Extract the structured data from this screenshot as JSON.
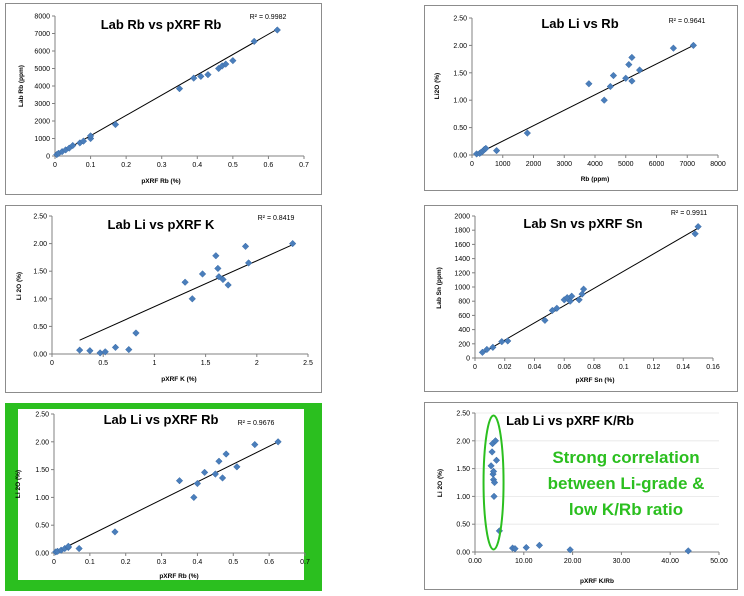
{
  "chart_data": [
    {
      "type": "scatter",
      "title": "Lab Rb vs pXRF Rb",
      "xlabel": "pXRF Rb (%)",
      "ylabel": "Lab Rb (ppm)",
      "r2": "R² = 0.9982",
      "xlim": [
        0,
        0.7
      ],
      "ylim": [
        0,
        8000
      ],
      "xticks": [
        0,
        0.1,
        0.2,
        0.3,
        0.4,
        0.5,
        0.6,
        0.7
      ],
      "xtick_labels": [
        "0",
        "0.1",
        "0.2",
        "0.3",
        "0.4",
        "0.5",
        "0.6",
        "0.7"
      ],
      "yticks": [
        0,
        1000,
        2000,
        3000,
        4000,
        5000,
        6000,
        7000,
        8000
      ],
      "ytick_labels": [
        "0",
        "1000",
        "2000",
        "3000",
        "4000",
        "5000",
        "6000",
        "7000",
        "8000"
      ],
      "trendline": [
        [
          0,
          0
        ],
        [
          0.625,
          7250
        ]
      ],
      "points": [
        [
          0.005,
          80
        ],
        [
          0.01,
          150
        ],
        [
          0.02,
          250
        ],
        [
          0.03,
          350
        ],
        [
          0.04,
          450
        ],
        [
          0.05,
          600
        ],
        [
          0.07,
          750
        ],
        [
          0.08,
          850
        ],
        [
          0.1,
          1000
        ],
        [
          0.1,
          1150
        ],
        [
          0.17,
          1800
        ],
        [
          0.35,
          3850
        ],
        [
          0.39,
          4450
        ],
        [
          0.41,
          4550
        ],
        [
          0.43,
          4650
        ],
        [
          0.46,
          5000
        ],
        [
          0.47,
          5150
        ],
        [
          0.48,
          5250
        ],
        [
          0.5,
          5450
        ],
        [
          0.56,
          6550
        ],
        [
          0.625,
          7200
        ]
      ]
    },
    {
      "type": "scatter",
      "title": "Lab Li vs Rb",
      "xlabel": "Rb (ppm)",
      "ylabel": "Li2O (%)",
      "r2": "R² = 0.9641",
      "xlim": [
        0,
        8000
      ],
      "ylim": [
        0,
        2.5
      ],
      "xticks": [
        0,
        1000,
        2000,
        3000,
        4000,
        5000,
        6000,
        7000,
        8000
      ],
      "xtick_labels": [
        "0",
        "1000",
        "2000",
        "3000",
        "4000",
        "5000",
        "6000",
        "7000",
        "8000"
      ],
      "yticks": [
        0,
        0.5,
        1,
        1.5,
        2,
        2.5
      ],
      "ytick_labels": [
        "0.00",
        "0.50",
        "1.00",
        "1.50",
        "2.00",
        "2.50"
      ],
      "trendline": [
        [
          100,
          0
        ],
        [
          7200,
          2.0
        ]
      ],
      "points": [
        [
          150,
          0.02
        ],
        [
          250,
          0.03
        ],
        [
          300,
          0.05
        ],
        [
          350,
          0.07
        ],
        [
          400,
          0.1
        ],
        [
          450,
          0.12
        ],
        [
          800,
          0.08
        ],
        [
          1800,
          0.4
        ],
        [
          3800,
          1.3
        ],
        [
          4300,
          1.0
        ],
        [
          4500,
          1.25
        ],
        [
          4600,
          1.45
        ],
        [
          5000,
          1.4
        ],
        [
          5100,
          1.65
        ],
        [
          5200,
          1.78
        ],
        [
          5200,
          1.35
        ],
        [
          5450,
          1.55
        ],
        [
          6550,
          1.95
        ],
        [
          7200,
          2.0
        ]
      ]
    },
    {
      "type": "scatter",
      "title": "Lab Li vs pXRF K",
      "xlabel": "pXRF K (%)",
      "ylabel": "Li 2O (%)",
      "r2": "R² = 0.8419",
      "xlim": [
        0,
        2.5
      ],
      "ylim": [
        0,
        2.5
      ],
      "xticks": [
        0,
        0.5,
        1,
        1.5,
        2,
        2.5
      ],
      "xtick_labels": [
        "0",
        "0.5",
        "1",
        "1.5",
        "2",
        "2.5"
      ],
      "yticks": [
        0,
        0.5,
        1,
        1.5,
        2,
        2.5
      ],
      "ytick_labels": [
        "0.00",
        "0.50",
        "1.00",
        "1.50",
        "2.00",
        "2.50"
      ],
      "trendline": [
        [
          0.27,
          0.25
        ],
        [
          2.35,
          1.98
        ]
      ],
      "points": [
        [
          0.27,
          0.07
        ],
        [
          0.37,
          0.06
        ],
        [
          0.47,
          0.02
        ],
        [
          0.52,
          0.04
        ],
        [
          0.62,
          0.12
        ],
        [
          0.75,
          0.08
        ],
        [
          0.82,
          0.38
        ],
        [
          1.3,
          1.3
        ],
        [
          1.37,
          1.0
        ],
        [
          1.47,
          1.45
        ],
        [
          1.6,
          1.78
        ],
        [
          1.62,
          1.55
        ],
        [
          1.63,
          1.4
        ],
        [
          1.67,
          1.35
        ],
        [
          1.72,
          1.25
        ],
        [
          1.89,
          1.95
        ],
        [
          1.92,
          1.65
        ],
        [
          2.35,
          2.0
        ]
      ]
    },
    {
      "type": "scatter",
      "title": "Lab Sn vs pXRF Sn",
      "xlabel": "pXRF Sn (%)",
      "ylabel": "Lab Sn (ppm)",
      "r2": "R² = 0.9911",
      "xlim": [
        0,
        0.16
      ],
      "ylim": [
        0,
        2000
      ],
      "xticks": [
        0,
        0.02,
        0.04,
        0.06,
        0.08,
        0.1,
        0.12,
        0.14,
        0.16
      ],
      "xtick_labels": [
        "0",
        "0.02",
        "0.04",
        "0.06",
        "0.08",
        "0.1",
        "0.12",
        "0.14",
        "0.16"
      ],
      "yticks": [
        0,
        200,
        400,
        600,
        800,
        1000,
        1200,
        1400,
        1600,
        1800,
        2000
      ],
      "ytick_labels": [
        "0",
        "200",
        "400",
        "600",
        "800",
        "1000",
        "1200",
        "1400",
        "1600",
        "1800",
        "2000"
      ],
      "trendline": [
        [
          0.005,
          70
        ],
        [
          0.15,
          1830
        ]
      ],
      "points": [
        [
          0.005,
          80
        ],
        [
          0.008,
          120
        ],
        [
          0.012,
          150
        ],
        [
          0.018,
          230
        ],
        [
          0.022,
          240
        ],
        [
          0.047,
          530
        ],
        [
          0.052,
          670
        ],
        [
          0.055,
          700
        ],
        [
          0.06,
          820
        ],
        [
          0.062,
          850
        ],
        [
          0.064,
          800
        ],
        [
          0.065,
          870
        ],
        [
          0.07,
          820
        ],
        [
          0.072,
          900
        ],
        [
          0.073,
          970
        ],
        [
          0.148,
          1750
        ],
        [
          0.15,
          1850
        ]
      ]
    },
    {
      "type": "scatter",
      "title": "Lab Li vs pXRF Rb",
      "xlabel": "pXRF Rb (%)",
      "ylabel": "Li 2O (%)",
      "r2": "R² = 0.9676",
      "xlim": [
        0,
        0.7
      ],
      "ylim": [
        0,
        2.5
      ],
      "xticks": [
        0,
        0.1,
        0.2,
        0.3,
        0.4,
        0.5,
        0.6,
        0.7
      ],
      "xtick_labels": [
        "0",
        "0.1",
        "0.2",
        "0.3",
        "0.4",
        "0.5",
        "0.6",
        "0.7"
      ],
      "yticks": [
        0,
        0.5,
        1,
        1.5,
        2,
        2.5
      ],
      "ytick_labels": [
        "0.00",
        "0.50",
        "1.00",
        "1.50",
        "2.00",
        "2.50"
      ],
      "trendline": [
        [
          0,
          0
        ],
        [
          0.625,
          2.0
        ]
      ],
      "points": [
        [
          0.005,
          0.02
        ],
        [
          0.01,
          0.03
        ],
        [
          0.02,
          0.05
        ],
        [
          0.03,
          0.08
        ],
        [
          0.04,
          0.1
        ],
        [
          0.04,
          0.12
        ],
        [
          0.07,
          0.08
        ],
        [
          0.17,
          0.38
        ],
        [
          0.35,
          1.3
        ],
        [
          0.39,
          1.0
        ],
        [
          0.4,
          1.25
        ],
        [
          0.42,
          1.45
        ],
        [
          0.45,
          1.42
        ],
        [
          0.46,
          1.65
        ],
        [
          0.47,
          1.35
        ],
        [
          0.48,
          1.78
        ],
        [
          0.51,
          1.55
        ],
        [
          0.56,
          1.95
        ],
        [
          0.625,
          2.0
        ]
      ]
    },
    {
      "type": "scatter",
      "title": "Lab Li vs pXRF K/Rb",
      "xlabel": "pXRF K/Rb",
      "ylabel": "Li 2O (%)",
      "r2": "",
      "xlim": [
        0,
        50
      ],
      "ylim": [
        0,
        2.5
      ],
      "xticks": [
        0,
        10,
        20,
        30,
        40,
        50
      ],
      "xtick_labels": [
        "0.00",
        "10.00",
        "20.00",
        "30.00",
        "40.00",
        "50.00"
      ],
      "yticks": [
        0,
        0.5,
        1,
        1.5,
        2,
        2.5
      ],
      "ytick_labels": [
        "0.00",
        "0.50",
        "1.00",
        "1.50",
        "2.00",
        "2.50"
      ],
      "annotation": "Strong correlation between Li-grade & low K/Rb ratio",
      "annotation_lines": [
        "Strong correlation",
        "between Li-grade &",
        "low K/Rb ratio"
      ],
      "points": [
        [
          3.3,
          1.55
        ],
        [
          3.5,
          1.8
        ],
        [
          3.6,
          1.95
        ],
        [
          3.7,
          1.4
        ],
        [
          3.8,
          1.45
        ],
        [
          3.8,
          1.3
        ],
        [
          3.9,
          1.0
        ],
        [
          4.0,
          1.25
        ],
        [
          4.2,
          2.0
        ],
        [
          4.4,
          1.65
        ],
        [
          5.0,
          0.38
        ],
        [
          7.7,
          0.07
        ],
        [
          8.2,
          0.06
        ],
        [
          10.5,
          0.08
        ],
        [
          13.2,
          0.12
        ],
        [
          19.5,
          0.04
        ],
        [
          43.7,
          0.02
        ]
      ]
    }
  ]
}
